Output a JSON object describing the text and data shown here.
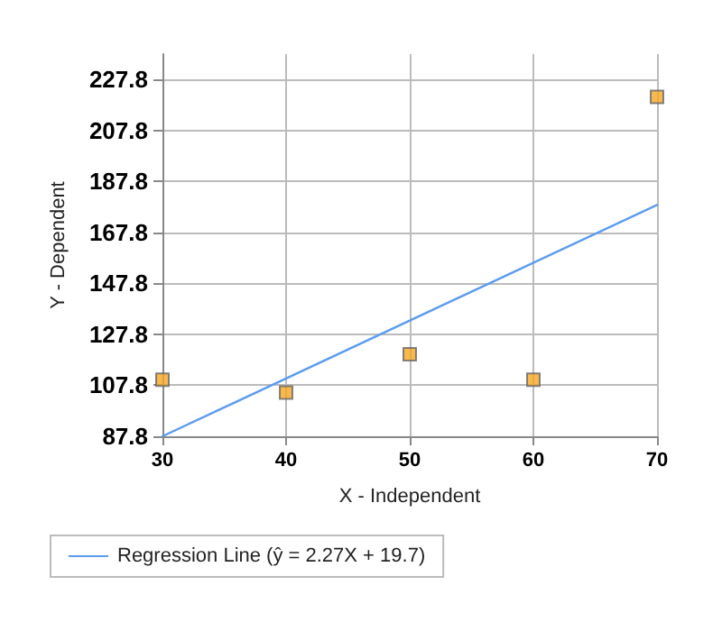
{
  "chart_data": {
    "type": "scatter",
    "xlabel": "X - Independent",
    "ylabel": "Y - Dependent",
    "xlim": [
      30,
      70
    ],
    "xticks": [
      30,
      40,
      50,
      60,
      70
    ],
    "ylim": [
      87.8,
      237.8
    ],
    "yticks": [
      87.8,
      107.8,
      127.8,
      147.8,
      167.8,
      187.8,
      207.8,
      227.8
    ],
    "grid": true,
    "legend": "bottom",
    "marker": "square",
    "series": [
      {
        "color": "#f5a623",
        "x": [
          30,
          40,
          50,
          60,
          70
        ],
        "values": [
          110,
          105,
          120,
          110,
          221
        ]
      },
      {
        "type": "line",
        "name": "Regression Line (ŷ = 2.27X + 19.7)",
        "color": "#5b9bf0",
        "x": [
          30,
          70
        ],
        "values": [
          87.8,
          178.6
        ],
        "marker": "none",
        "line_style": "solid"
      }
    ]
  }
}
